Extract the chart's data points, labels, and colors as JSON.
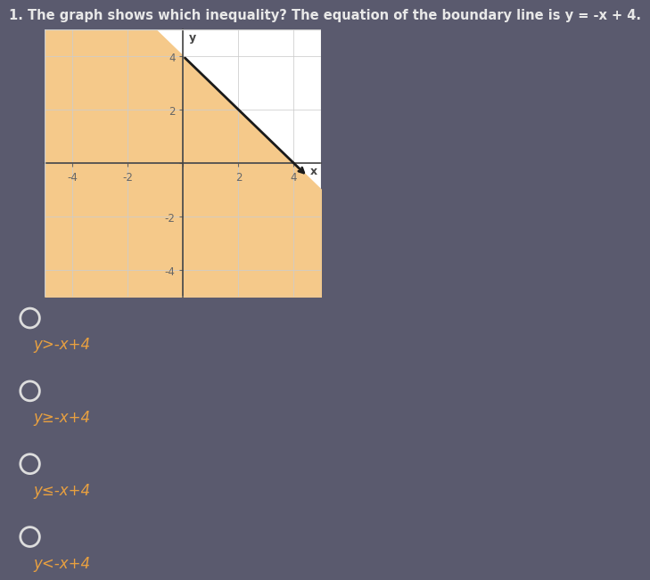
{
  "title": "1. The graph shows which inequality? The equation of the boundary line is y = -x + 4.",
  "title_fontsize": 10.5,
  "title_color": "#e8e8e8",
  "bg_color": "#5a5a6e",
  "graph_bg": "#ffffff",
  "shade_color": "#f5c98a",
  "line_color": "#1a1a1a",
  "line_width": 2.0,
  "xlim": [
    -5,
    5
  ],
  "ylim": [
    -5,
    5
  ],
  "xticks": [
    -4,
    -2,
    0,
    2,
    4
  ],
  "yticks": [
    -4,
    -2,
    0,
    2,
    4
  ],
  "tick_fontsize": 8.5,
  "tick_color": "#666666",
  "grid_color": "#cccccc",
  "grid_alpha": 0.8,
  "axis_color": "#444444",
  "xlabel": "x",
  "ylabel": "y",
  "choices": [
    "y>-x+4",
    "y≥-x+4",
    "y≤-x+4",
    "y<-x+4"
  ],
  "choice_color": "#e8a040",
  "choice_fontsize": 12,
  "circle_color": "#dddddd"
}
